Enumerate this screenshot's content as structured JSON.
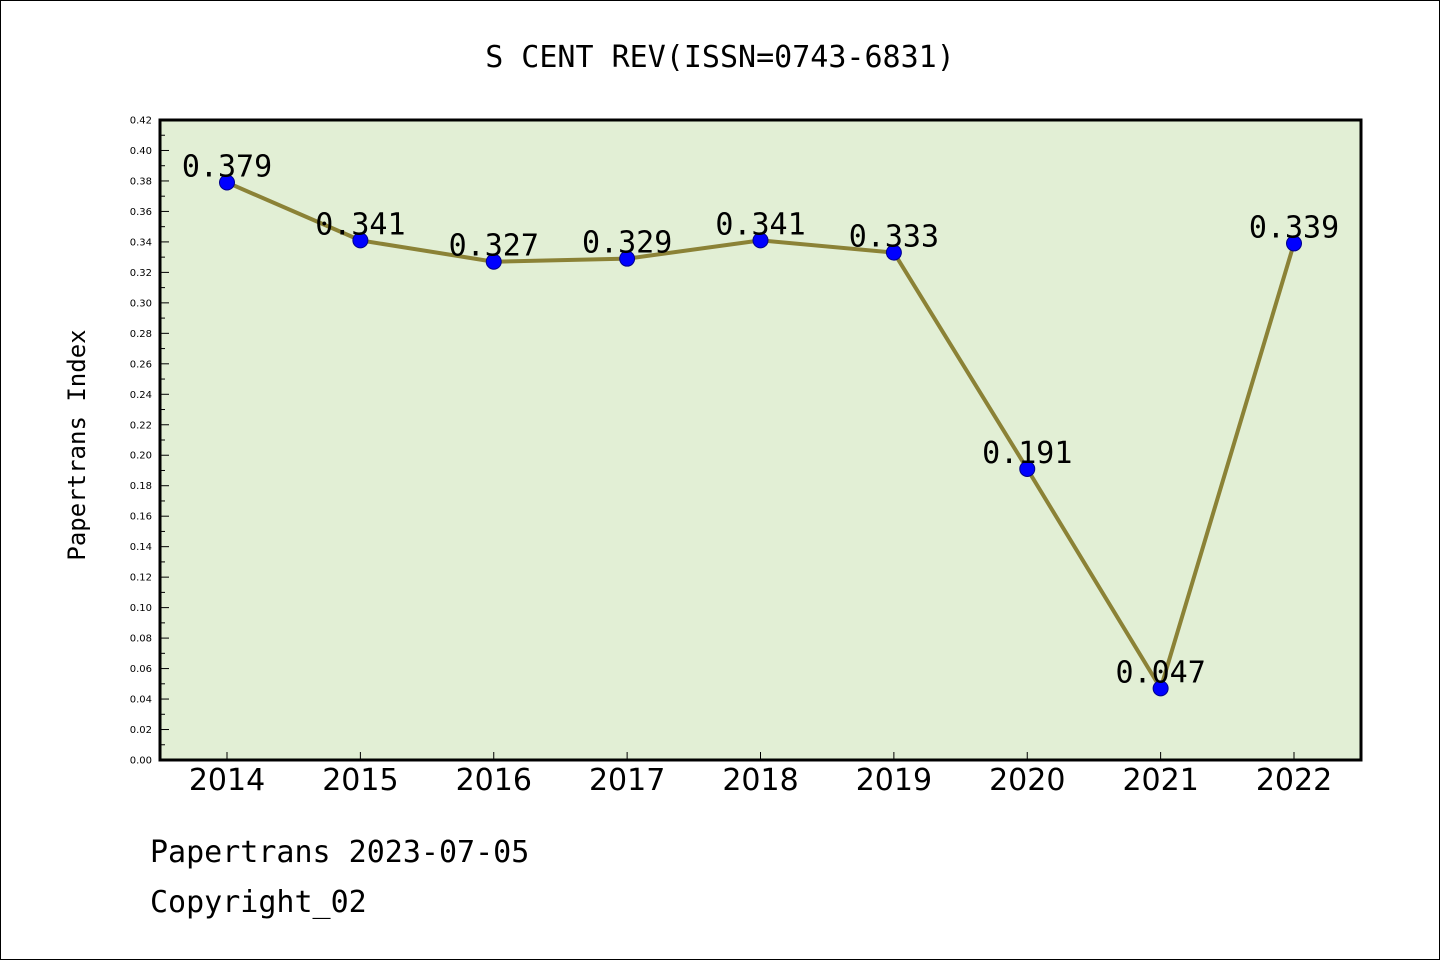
{
  "chart_data": {
    "type": "line",
    "title": "S CENT REV(ISSN=0743-6831)",
    "xlabel": "",
    "ylabel": "Papertrans Index",
    "categories": [
      "2014",
      "2015",
      "2016",
      "2017",
      "2018",
      "2019",
      "2020",
      "2021",
      "2022"
    ],
    "series": [
      {
        "values": [
          0.379,
          0.341,
          0.327,
          0.329,
          0.341,
          0.333,
          0.191,
          0.047,
          0.339
        ],
        "labels": [
          "0.379",
          "0.341",
          "0.327",
          "0.329",
          "0.341",
          "0.333",
          "0.191",
          "0.047",
          "0.339"
        ],
        "line_color": "#8b8236",
        "marker_color": "#0000ff"
      }
    ],
    "ylim": [
      0,
      0.42
    ],
    "yticks": [
      "0.00",
      "0.02",
      "0.04",
      "0.06",
      "0.08",
      "0.10",
      "0.12",
      "0.14",
      "0.16",
      "0.18",
      "0.20",
      "0.22",
      "0.24",
      "0.26",
      "0.28",
      "0.30",
      "0.32",
      "0.34",
      "0.36",
      "0.38",
      "0.40",
      "0.42"
    ],
    "grid": false,
    "plot_background": "#e2efd5"
  },
  "footer": {
    "line1": "Papertrans 2023-07-05",
    "line2": "Copyright_02"
  }
}
